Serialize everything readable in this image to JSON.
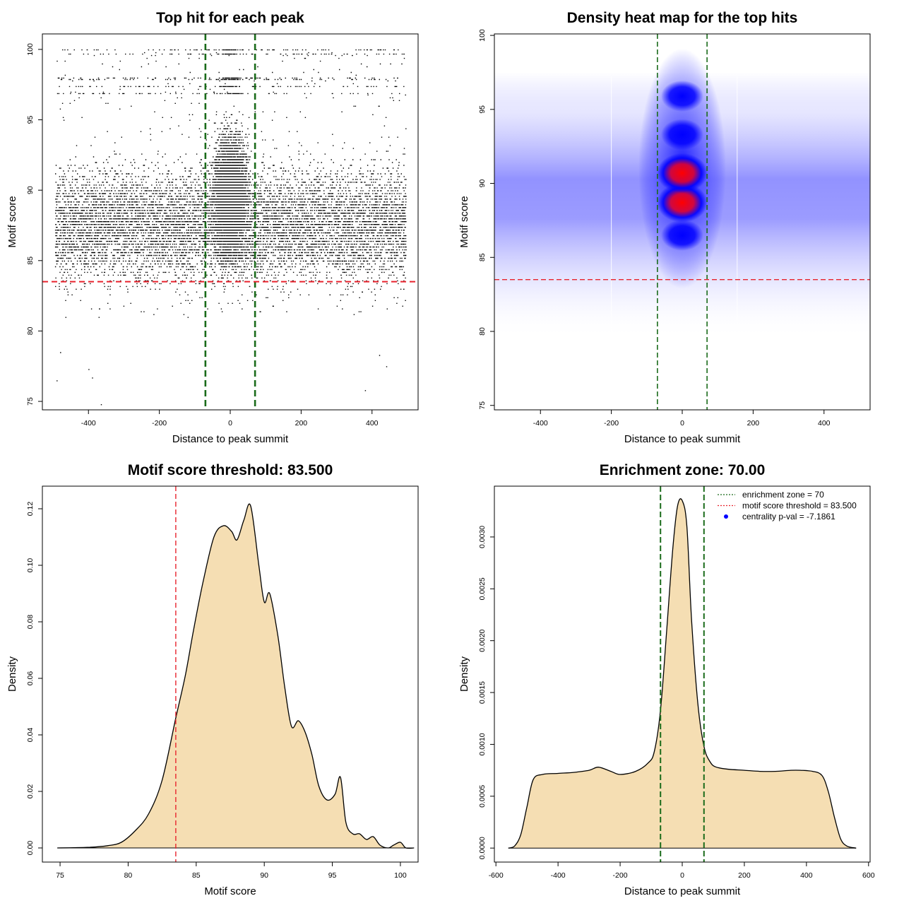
{
  "colors": {
    "threshold_line": "#e8232d",
    "zone_line": "#1a6b1a",
    "density_fill": "#f5deb3",
    "heat_low": "#ffffff",
    "heat_mid": "#0000ff",
    "heat_high": "#ff0000"
  },
  "chart_data": [
    {
      "type": "scatter",
      "title": "Top hit for each peak",
      "xlabel": "Distance to peak summit",
      "ylabel": "Motif score",
      "xlim": [
        -530,
        530
      ],
      "ylim": [
        74.4,
        101.1
      ],
      "xticks": [
        -400,
        -200,
        0,
        200,
        400
      ],
      "yticks": [
        75,
        80,
        85,
        90,
        95,
        100
      ],
      "xtick_labels": [
        "-400",
        "-200",
        "0",
        "200",
        "400"
      ],
      "ytick_labels": [
        "75",
        "80",
        "85",
        "90",
        "95",
        "100"
      ],
      "hlines": [
        83.5
      ],
      "vlines": [
        -70,
        70
      ],
      "distribution": {
        "x_range": [
          -500,
          500
        ],
        "score_rows": "discrete score levels between 74.8 and 100",
        "central_enrichment": "points concentrated between -70 and 70 at scores 84-96",
        "bulk": "dense band of points at scores 84-92"
      },
      "outliers": [
        {
          "x": -365,
          "y": 74.8
        },
        {
          "x": -490,
          "y": 76.5
        },
        {
          "x": -400,
          "y": 77.3
        },
        {
          "x": -390,
          "y": 76.7
        },
        {
          "x": 380,
          "y": 75.8
        },
        {
          "x": 440,
          "y": 77.5
        },
        {
          "x": -480,
          "y": 78.5
        },
        {
          "x": 420,
          "y": 78.3
        }
      ]
    },
    {
      "type": "heatmap",
      "title": "Density heat map for the top hits",
      "xlabel": "Distance to peak summit",
      "ylabel": "Motif score",
      "xlim": [
        -530,
        530
      ],
      "ylim": [
        74.7,
        100.1
      ],
      "xticks": [
        -400,
        -200,
        0,
        200,
        400
      ],
      "yticks": [
        75,
        80,
        85,
        90,
        95,
        100
      ],
      "xtick_labels": [
        "-400",
        "-200",
        "0",
        "200",
        "400"
      ],
      "ytick_labels": [
        "75",
        "80",
        "85",
        "90",
        "95",
        "100"
      ],
      "hlines": [
        83.5
      ],
      "vlines": [
        -70,
        70
      ],
      "hotspots": [
        {
          "x": 0,
          "y": 88.7,
          "level": "high"
        },
        {
          "x": 0,
          "y": 90.7,
          "level": "high"
        },
        {
          "x": 0,
          "y": 93.3,
          "level": "mid"
        },
        {
          "x": 0,
          "y": 95.9,
          "level": "mid"
        },
        {
          "x": 0,
          "y": 86.5,
          "level": "mid"
        }
      ],
      "background_band": {
        "y_center": 87.5,
        "level": "low"
      }
    },
    {
      "type": "area",
      "title": "Motif score threshold: 83.500",
      "xlabel": "Motif score",
      "ylabel": "Density",
      "xlim": [
        73.7,
        101.3
      ],
      "ylim": [
        -0.005,
        0.128
      ],
      "xticks": [
        75,
        80,
        85,
        90,
        95,
        100
      ],
      "yticks": [
        0.0,
        0.02,
        0.04,
        0.06,
        0.08,
        0.1,
        0.12
      ],
      "xtick_labels": [
        "75",
        "80",
        "85",
        "90",
        "95",
        "100"
      ],
      "ytick_labels": [
        "0.00",
        "0.02",
        "0.04",
        "0.06",
        "0.08",
        "0.10",
        "0.12"
      ],
      "vlines": [
        83.5
      ],
      "x": [
        74.8,
        77,
        78.5,
        79.5,
        80.5,
        81.5,
        82.5,
        83.5,
        84.2,
        84.8,
        85.5,
        86.3,
        87,
        87.6,
        88,
        88.5,
        89,
        89.6,
        90,
        90.4,
        91,
        91.5,
        92,
        92.5,
        93,
        93.5,
        94,
        94.6,
        95.2,
        95.6,
        96,
        96.5,
        97,
        97.5,
        98,
        98.5,
        99.1,
        99.5,
        100,
        100.4,
        101
      ],
      "y": [
        0.0,
        0.0002,
        0.0008,
        0.002,
        0.006,
        0.012,
        0.024,
        0.046,
        0.061,
        0.077,
        0.094,
        0.11,
        0.114,
        0.112,
        0.109,
        0.116,
        0.121,
        0.1,
        0.087,
        0.09,
        0.075,
        0.057,
        0.043,
        0.045,
        0.041,
        0.033,
        0.022,
        0.017,
        0.019,
        0.025,
        0.009,
        0.005,
        0.005,
        0.003,
        0.004,
        0.001,
        0.0,
        0.001,
        0.002,
        0.0,
        0.0
      ]
    },
    {
      "type": "area",
      "title": "Enrichment zone: 70.00",
      "xlabel": "Distance to peak summit",
      "ylabel": "Density",
      "xlim": [
        -605,
        605
      ],
      "ylim": [
        -0.000135,
        0.00349
      ],
      "xticks": [
        -600,
        -400,
        -200,
        0,
        200,
        400,
        600
      ],
      "yticks": [
        0.0,
        0.0005,
        0.001,
        0.0015,
        0.002,
        0.0025,
        0.003
      ],
      "xtick_labels": [
        "-600",
        "-400",
        "-200",
        "0",
        "200",
        "400",
        "600"
      ],
      "ytick_labels": [
        "0.0000",
        "0.0005",
        "0.0010",
        "0.0015",
        "0.0020",
        "0.0025",
        "0.0030"
      ],
      "vlines": [
        -70,
        70
      ],
      "x": [
        -560,
        -540,
        -520,
        -500,
        -480,
        -450,
        -400,
        -350,
        -300,
        -270,
        -230,
        -200,
        -150,
        -110,
        -90,
        -70,
        -50,
        -30,
        -15,
        0,
        15,
        30,
        50,
        70,
        90,
        110,
        150,
        200,
        250,
        300,
        350,
        380,
        420,
        450,
        470,
        490,
        510,
        530,
        560
      ],
      "y": [
        0.0,
        2e-05,
        0.00013,
        0.0004,
        0.00066,
        0.00071,
        0.00072,
        0.00073,
        0.00075,
        0.00078,
        0.00074,
        0.00071,
        0.00074,
        0.00082,
        0.00093,
        0.00133,
        0.0021,
        0.0029,
        0.0033,
        0.00335,
        0.0031,
        0.0022,
        0.0014,
        0.00098,
        0.00083,
        0.00078,
        0.00076,
        0.00075,
        0.00074,
        0.00074,
        0.00075,
        0.00075,
        0.00074,
        0.0007,
        0.00055,
        0.0003,
        9e-05,
        2e-05,
        0.0
      ],
      "legend": {
        "position": "top-right",
        "entries": [
          {
            "label": "enrichment zone = 70",
            "style": "dotted",
            "color": "#1a6b1a"
          },
          {
            "label": "motif score threshold = 83.500",
            "style": "dotted",
            "color": "#e8232d"
          },
          {
            "label": "centrality p-val = -7.1861",
            "style": "point",
            "color": "#0000ff"
          }
        ]
      }
    }
  ]
}
